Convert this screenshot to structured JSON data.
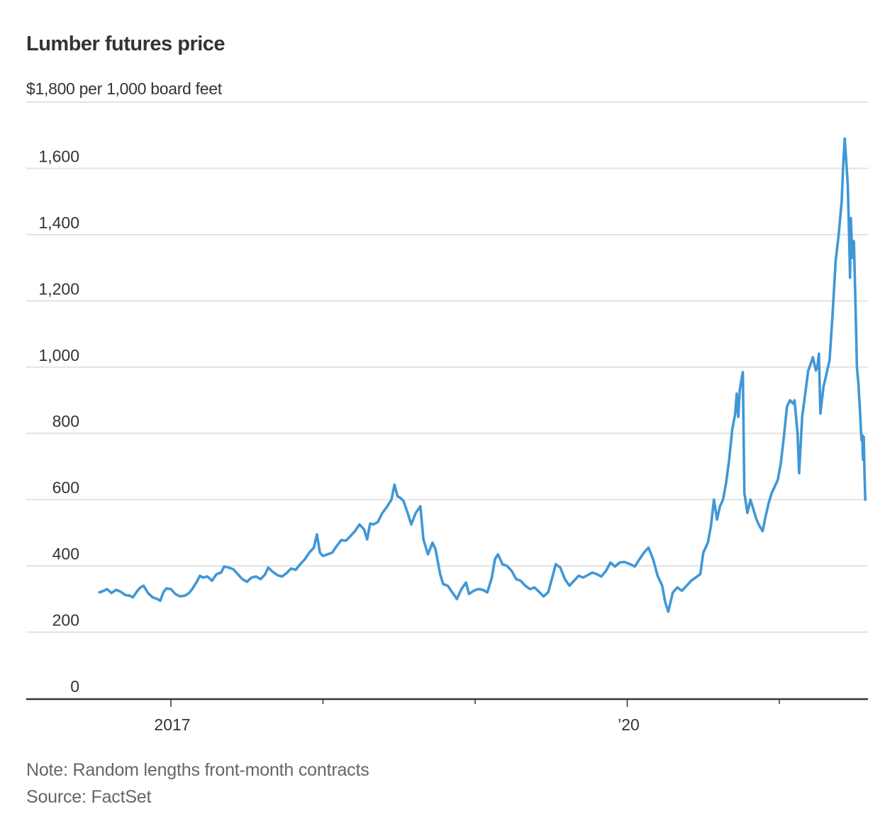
{
  "header": {
    "title": "Lumber futures price",
    "unit_label": "$1,800 per 1,000 board feet"
  },
  "footer": {
    "note": "Note: Random lengths front-month contracts",
    "source": "Source: FactSet"
  },
  "colors": {
    "line": "#4097D6",
    "grid": "#E3E3E3",
    "axis": "#333333",
    "text": "#333333",
    "footnote": "#666666"
  },
  "chart_data": {
    "type": "line",
    "title": "Lumber futures price",
    "xlabel": "",
    "ylabel": "$ per 1,000 board feet",
    "ylim": [
      0,
      1800
    ],
    "xlim": [
      2016.53,
      2021.56
    ],
    "grid": true,
    "legend": "none",
    "y_ticks": [
      0,
      200,
      400,
      600,
      800,
      1000,
      1200,
      1400,
      1600,
      1800
    ],
    "y_tick_labels": [
      "0",
      "200",
      "400",
      "600",
      "800",
      "1,000",
      "1,200",
      "1,400",
      "1,600",
      "$1,800 per 1,000 board feet"
    ],
    "x_ticks": [
      2017,
      2018,
      2019,
      2020,
      2021
    ],
    "x_tick_labels": [
      "2017",
      "",
      "",
      "’20",
      ""
    ],
    "series": [
      {
        "name": "Lumber futures price",
        "points": [
          [
            2016.53,
            320
          ],
          [
            2016.56,
            325
          ],
          [
            2016.58,
            330
          ],
          [
            2016.61,
            318
          ],
          [
            2016.64,
            328
          ],
          [
            2016.67,
            322
          ],
          [
            2016.7,
            312
          ],
          [
            2016.73,
            310
          ],
          [
            2016.75,
            305
          ],
          [
            2016.78,
            325
          ],
          [
            2016.8,
            335
          ],
          [
            2016.82,
            340
          ],
          [
            2016.85,
            318
          ],
          [
            2016.88,
            305
          ],
          [
            2016.91,
            300
          ],
          [
            2016.93,
            295
          ],
          [
            2016.95,
            320
          ],
          [
            2016.97,
            332
          ],
          [
            2017.0,
            330
          ],
          [
            2017.03,
            315
          ],
          [
            2017.06,
            308
          ],
          [
            2017.09,
            310
          ],
          [
            2017.12,
            318
          ],
          [
            2017.14,
            330
          ],
          [
            2017.17,
            352
          ],
          [
            2017.19,
            370
          ],
          [
            2017.21,
            365
          ],
          [
            2017.24,
            368
          ],
          [
            2017.27,
            355
          ],
          [
            2017.3,
            375
          ],
          [
            2017.33,
            380
          ],
          [
            2017.35,
            398
          ],
          [
            2017.38,
            395
          ],
          [
            2017.41,
            390
          ],
          [
            2017.44,
            375
          ],
          [
            2017.47,
            360
          ],
          [
            2017.5,
            352
          ],
          [
            2017.53,
            365
          ],
          [
            2017.56,
            368
          ],
          [
            2017.59,
            360
          ],
          [
            2017.62,
            375
          ],
          [
            2017.64,
            395
          ],
          [
            2017.67,
            382
          ],
          [
            2017.7,
            372
          ],
          [
            2017.73,
            368
          ],
          [
            2017.76,
            378
          ],
          [
            2017.79,
            392
          ],
          [
            2017.82,
            388
          ],
          [
            2017.85,
            405
          ],
          [
            2017.88,
            420
          ],
          [
            2017.91,
            440
          ],
          [
            2017.94,
            455
          ],
          [
            2017.96,
            495
          ],
          [
            2017.98,
            440
          ],
          [
            2018.0,
            430
          ],
          [
            2018.03,
            435
          ],
          [
            2018.06,
            440
          ],
          [
            2018.09,
            460
          ],
          [
            2018.12,
            478
          ],
          [
            2018.15,
            476
          ],
          [
            2018.18,
            490
          ],
          [
            2018.21,
            505
          ],
          [
            2018.24,
            525
          ],
          [
            2018.27,
            510
          ],
          [
            2018.29,
            480
          ],
          [
            2018.31,
            528
          ],
          [
            2018.33,
            525
          ],
          [
            2018.36,
            532
          ],
          [
            2018.39,
            560
          ],
          [
            2018.42,
            578
          ],
          [
            2018.45,
            600
          ],
          [
            2018.47,
            645
          ],
          [
            2018.49,
            610
          ],
          [
            2018.51,
            605
          ],
          [
            2018.53,
            595
          ],
          [
            2018.56,
            555
          ],
          [
            2018.58,
            525
          ],
          [
            2018.61,
            560
          ],
          [
            2018.64,
            580
          ],
          [
            2018.66,
            480
          ],
          [
            2018.69,
            435
          ],
          [
            2018.72,
            470
          ],
          [
            2018.74,
            450
          ],
          [
            2018.77,
            375
          ],
          [
            2018.79,
            345
          ],
          [
            2018.82,
            340
          ],
          [
            2018.85,
            320
          ],
          [
            2018.88,
            300
          ],
          [
            2018.91,
            330
          ],
          [
            2018.94,
            350
          ],
          [
            2018.96,
            315
          ],
          [
            2018.99,
            325
          ],
          [
            2019.02,
            330
          ],
          [
            2019.05,
            328
          ],
          [
            2019.08,
            320
          ],
          [
            2019.11,
            365
          ],
          [
            2019.13,
            420
          ],
          [
            2019.15,
            435
          ],
          [
            2019.18,
            405
          ],
          [
            2019.21,
            400
          ],
          [
            2019.24,
            385
          ],
          [
            2019.27,
            360
          ],
          [
            2019.3,
            355
          ],
          [
            2019.33,
            340
          ],
          [
            2019.36,
            330
          ],
          [
            2019.39,
            335
          ],
          [
            2019.42,
            322
          ],
          [
            2019.45,
            308
          ],
          [
            2019.48,
            320
          ],
          [
            2019.51,
            370
          ],
          [
            2019.53,
            405
          ],
          [
            2019.56,
            395
          ],
          [
            2019.59,
            360
          ],
          [
            2019.62,
            340
          ],
          [
            2019.65,
            355
          ],
          [
            2019.68,
            370
          ],
          [
            2019.71,
            365
          ],
          [
            2019.74,
            372
          ],
          [
            2019.77,
            380
          ],
          [
            2019.8,
            375
          ],
          [
            2019.83,
            368
          ],
          [
            2019.86,
            385
          ],
          [
            2019.89,
            410
          ],
          [
            2019.92,
            398
          ],
          [
            2019.95,
            410
          ],
          [
            2019.98,
            412
          ],
          [
            2020.02,
            405
          ],
          [
            2020.05,
            398
          ],
          [
            2020.08,
            420
          ],
          [
            2020.11,
            440
          ],
          [
            2020.14,
            455
          ],
          [
            2020.17,
            420
          ],
          [
            2020.2,
            370
          ],
          [
            2020.23,
            340
          ],
          [
            2020.25,
            290
          ],
          [
            2020.27,
            262
          ],
          [
            2020.3,
            320
          ],
          [
            2020.33,
            335
          ],
          [
            2020.36,
            325
          ],
          [
            2020.39,
            340
          ],
          [
            2020.42,
            355
          ],
          [
            2020.45,
            365
          ],
          [
            2020.48,
            375
          ],
          [
            2020.5,
            440
          ],
          [
            2020.53,
            470
          ],
          [
            2020.55,
            520
          ],
          [
            2020.57,
            600
          ],
          [
            2020.59,
            540
          ],
          [
            2020.61,
            580
          ],
          [
            2020.63,
            600
          ],
          [
            2020.65,
            650
          ],
          [
            2020.67,
            720
          ],
          [
            2020.69,
            810
          ],
          [
            2020.71,
            860
          ],
          [
            2020.72,
            920
          ],
          [
            2020.73,
            850
          ],
          [
            2020.74,
            930
          ],
          [
            2020.75,
            960
          ],
          [
            2020.76,
            985
          ],
          [
            2020.765,
            800
          ],
          [
            2020.77,
            620
          ],
          [
            2020.79,
            560
          ],
          [
            2020.81,
            600
          ],
          [
            2020.83,
            570
          ],
          [
            2020.85,
            540
          ],
          [
            2020.87,
            520
          ],
          [
            2020.89,
            505
          ],
          [
            2020.91,
            550
          ],
          [
            2020.93,
            590
          ],
          [
            2020.95,
            620
          ],
          [
            2020.97,
            640
          ],
          [
            2020.99,
            660
          ],
          [
            2021.01,
            710
          ],
          [
            2021.03,
            790
          ],
          [
            2021.05,
            880
          ],
          [
            2021.07,
            900
          ],
          [
            2021.09,
            890
          ],
          [
            2021.1,
            900
          ],
          [
            2021.12,
            800
          ],
          [
            2021.13,
            680
          ],
          [
            2021.15,
            850
          ],
          [
            2021.17,
            920
          ],
          [
            2021.19,
            990
          ],
          [
            2021.21,
            1015
          ],
          [
            2021.22,
            1030
          ],
          [
            2021.24,
            990
          ],
          [
            2021.25,
            1000
          ],
          [
            2021.26,
            1040
          ],
          [
            2021.27,
            860
          ],
          [
            2021.29,
            940
          ],
          [
            2021.31,
            980
          ],
          [
            2021.33,
            1020
          ],
          [
            2021.35,
            1160
          ],
          [
            2021.37,
            1320
          ],
          [
            2021.39,
            1400
          ],
          [
            2021.41,
            1500
          ],
          [
            2021.42,
            1610
          ],
          [
            2021.43,
            1690
          ],
          [
            2021.44,
            1620
          ],
          [
            2021.45,
            1550
          ],
          [
            2021.46,
            1370
          ],
          [
            2021.465,
            1270
          ],
          [
            2021.47,
            1450
          ],
          [
            2021.48,
            1330
          ],
          [
            2021.49,
            1380
          ],
          [
            2021.5,
            1200
          ],
          [
            2021.51,
            1000
          ],
          [
            2021.52,
            950
          ],
          [
            2021.53,
            870
          ],
          [
            2021.54,
            780
          ],
          [
            2021.545,
            795
          ],
          [
            2021.55,
            720
          ],
          [
            2021.555,
            790
          ],
          [
            2021.56,
            680
          ],
          [
            2021.565,
            600
          ]
        ]
      }
    ]
  }
}
